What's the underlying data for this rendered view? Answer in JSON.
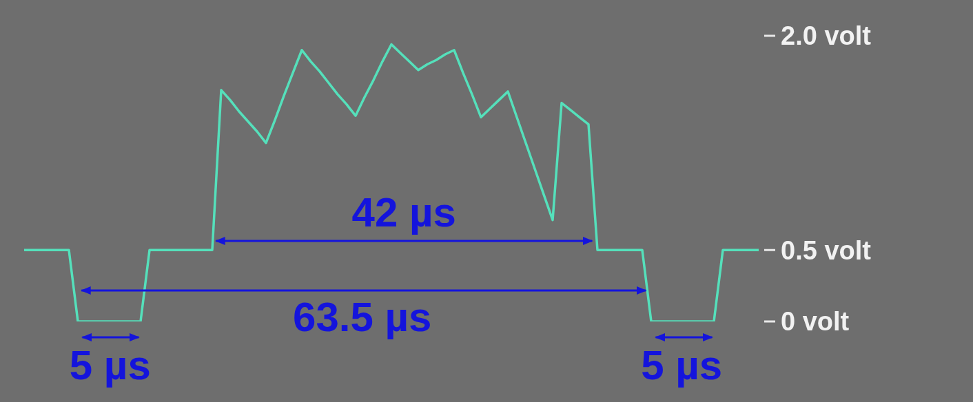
{
  "chart_data": {
    "type": "line",
    "categories": [
      null,
      null,
      null,
      null,
      null,
      null,
      null,
      null,
      null,
      null,
      null,
      null,
      null,
      null,
      null,
      null,
      null,
      null,
      null,
      null,
      null,
      null,
      null,
      null,
      null,
      null,
      null,
      null,
      null,
      null,
      null,
      null,
      null,
      null,
      null,
      null,
      null,
      null,
      null,
      null,
      null,
      null,
      null,
      null,
      null,
      null,
      null,
      null,
      null,
      null,
      null,
      null,
      null,
      null,
      null,
      null,
      null,
      null,
      null,
      null,
      null,
      null,
      null,
      null,
      null,
      null,
      null,
      null,
      null,
      null,
      null,
      null,
      null,
      null,
      null,
      null,
      null,
      null,
      null,
      null,
      null,
      null,
      null
    ],
    "series": [
      {
        "color": "#55e0bb",
        "values": [
          0.5,
          0.5,
          0.5,
          0.5,
          0.5,
          0.5,
          0,
          0,
          0,
          0,
          0,
          0,
          0,
          0,
          0.5,
          0.5,
          0.5,
          0.5,
          0.5,
          0.5,
          0.5,
          0.5,
          1.62,
          1.55,
          1.47,
          1.4,
          1.33,
          1.25,
          1.41,
          1.58,
          1.74,
          1.9,
          1.82,
          1.75,
          1.67,
          1.59,
          1.52,
          1.44,
          1.57,
          1.69,
          1.82,
          1.94,
          1.88,
          1.82,
          1.76,
          1.8,
          1.83,
          1.87,
          1.9,
          1.74,
          1.59,
          1.43,
          1.49,
          1.55,
          1.61,
          1.43,
          1.25,
          1.07,
          0.89,
          0.71,
          1.53,
          1.48,
          1.43,
          1.38,
          0.5,
          0.5,
          0.5,
          0.5,
          0.5,
          0.5,
          0,
          0,
          0,
          0,
          0,
          0,
          0,
          0,
          0.5,
          0.5,
          0.5,
          0.5,
          0.5
        ]
      }
    ],
    "ylim": [
      0,
      2
    ],
    "yticks": [
      {
        "value": 0,
        "label": "0 volt"
      },
      {
        "value": 0.5,
        "label": "0.5 volt"
      },
      {
        "value": 2,
        "label": "2.0 volt"
      }
    ],
    "tick_labels": "y",
    "marker": "none",
    "line_style": "solid",
    "annotations": [
      "42 µs",
      "63.5 µs",
      "5 µs",
      "5 µs"
    ]
  }
}
